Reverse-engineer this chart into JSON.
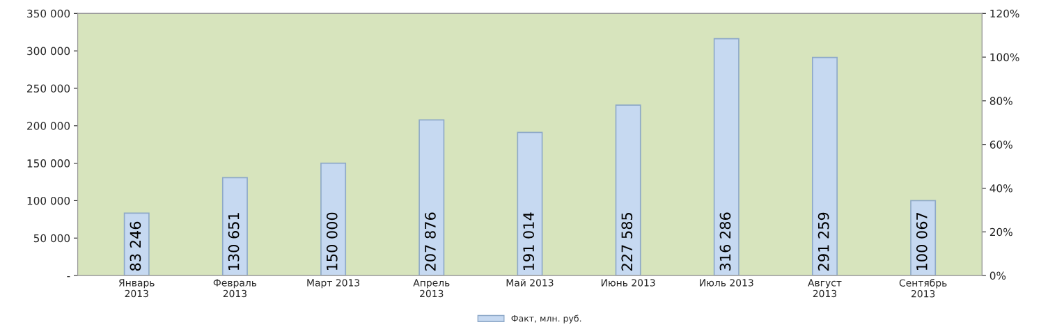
{
  "chart_data": {
    "type": "bar",
    "categories": [
      "Январь 2013",
      "Февраль 2013",
      "Март 2013",
      "Апрель 2013",
      "Май 2013",
      "Июнь 2013",
      "Июль 2013",
      "Август 2013",
      "Сентябрь 2013"
    ],
    "series": [
      {
        "name": "Факт, млн. руб.",
        "color": "#c6d9f1",
        "values": [
          83246,
          130651,
          150000,
          207876,
          191014,
          227585,
          316286,
          291259,
          100067
        ],
        "value_labels": [
          "83 246",
          "130 651",
          "150 000",
          "207 876",
          "191 014",
          "227 585",
          "316 286",
          "291 259",
          "100 067"
        ]
      }
    ],
    "ylim": [
      0,
      350000
    ],
    "yticks": [
      {
        "value": 0,
        "label": "-"
      },
      {
        "value": 50000,
        "label": "50 000"
      },
      {
        "value": 100000,
        "label": "100 000"
      },
      {
        "value": 150000,
        "label": "150 000"
      },
      {
        "value": 200000,
        "label": "200 000"
      },
      {
        "value": 250000,
        "label": "250 000"
      },
      {
        "value": 300000,
        "label": "300 000"
      },
      {
        "value": 350000,
        "label": "350 000"
      }
    ],
    "y2lim": [
      0,
      120
    ],
    "y2ticks": [
      {
        "value": 0,
        "label": "0%"
      },
      {
        "value": 20,
        "label": "20%"
      },
      {
        "value": 40,
        "label": "40%"
      },
      {
        "value": 60,
        "label": "60%"
      },
      {
        "value": 80,
        "label": "80%"
      },
      {
        "value": 100,
        "label": "100%"
      },
      {
        "value": 120,
        "label": "120%"
      }
    ],
    "legend": "bottom",
    "grid": false
  }
}
